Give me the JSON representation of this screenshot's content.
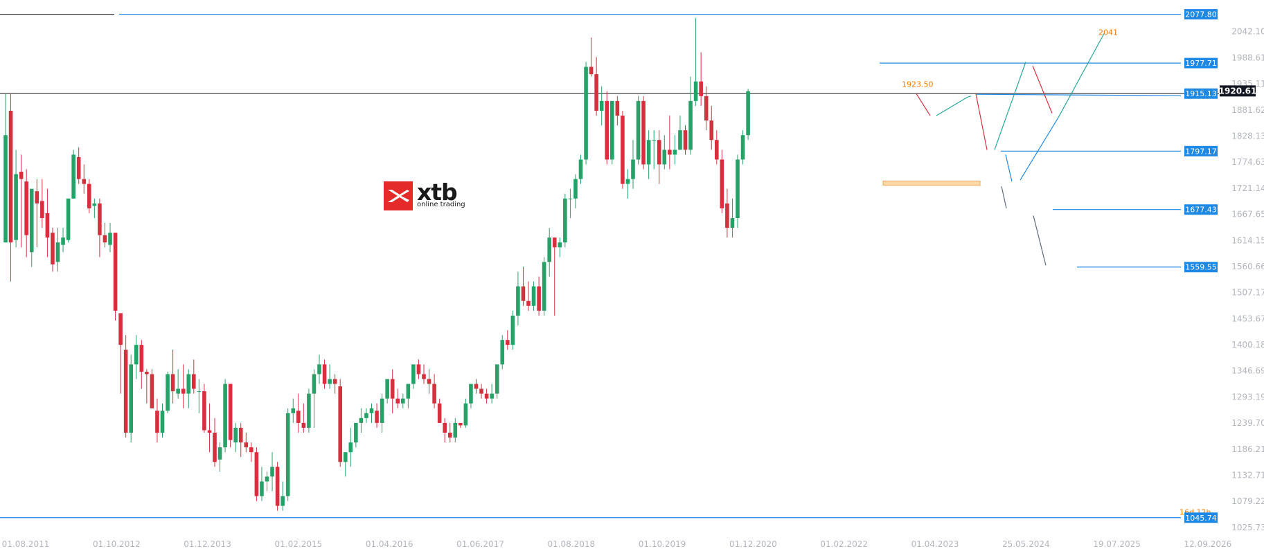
{
  "brand": {
    "name": "xtb",
    "tagline": "online trading"
  },
  "chart_data": {
    "type": "candlestick",
    "ylim": [
      1000,
      2090
    ],
    "y_ticks": [
      "2042.10",
      "1988.61",
      "1935.11",
      "1881.62",
      "1828.13",
      "1774.63",
      "1721.14",
      "1667.65",
      "1614.15",
      "1560.66",
      "1507.17",
      "1453.67",
      "1400.18",
      "1346.69",
      "1293.19",
      "1239.70",
      "1186.21",
      "1132.71",
      "1079.22",
      "1025.73"
    ],
    "x_ticks": [
      "01.08.2011",
      "01.10.2012",
      "01.12.2013",
      "01.02.2015",
      "01.04.2016",
      "01.06.2017",
      "01.08.2018",
      "01.10.2019",
      "01.12.2020",
      "01.02.2022",
      "01.04.2023",
      "25.05.2024",
      "19.07.2025",
      "12.09.2026"
    ],
    "candles": [
      {
        "o": 1610,
        "h": 1915,
        "l": 1610,
        "c": 1830
      },
      {
        "o": 1880,
        "h": 1915,
        "l": 1530,
        "c": 1610
      },
      {
        "o": 1615,
        "h": 1800,
        "l": 1600,
        "c": 1750
      },
      {
        "o": 1755,
        "h": 1790,
        "l": 1600,
        "c": 1740
      },
      {
        "o": 1735,
        "h": 1760,
        "l": 1580,
        "c": 1625
      },
      {
        "o": 1590,
        "h": 1715,
        "l": 1560,
        "c": 1720
      },
      {
        "o": 1715,
        "h": 1740,
        "l": 1600,
        "c": 1690
      },
      {
        "o": 1695,
        "h": 1740,
        "l": 1640,
        "c": 1660
      },
      {
        "o": 1670,
        "h": 1720,
        "l": 1580,
        "c": 1620
      },
      {
        "o": 1630,
        "h": 1640,
        "l": 1550,
        "c": 1565
      },
      {
        "o": 1570,
        "h": 1640,
        "l": 1550,
        "c": 1610
      },
      {
        "o": 1605,
        "h": 1640,
        "l": 1590,
        "c": 1620
      },
      {
        "o": 1615,
        "h": 1700,
        "l": 1610,
        "c": 1700
      },
      {
        "o": 1700,
        "h": 1800,
        "l": 1700,
        "c": 1790
      },
      {
        "o": 1785,
        "h": 1805,
        "l": 1730,
        "c": 1740
      },
      {
        "o": 1740,
        "h": 1770,
        "l": 1710,
        "c": 1730
      },
      {
        "o": 1730,
        "h": 1740,
        "l": 1670,
        "c": 1680
      },
      {
        "o": 1685,
        "h": 1700,
        "l": 1660,
        "c": 1690
      },
      {
        "o": 1690,
        "h": 1700,
        "l": 1580,
        "c": 1625
      },
      {
        "o": 1625,
        "h": 1650,
        "l": 1600,
        "c": 1610
      },
      {
        "o": 1605,
        "h": 1650,
        "l": 1590,
        "c": 1630
      },
      {
        "o": 1630,
        "h": 1630,
        "l": 1450,
        "c": 1470
      },
      {
        "o": 1465,
        "h": 1460,
        "l": 1300,
        "c": 1400
      },
      {
        "o": 1390,
        "h": 1420,
        "l": 1210,
        "c": 1220
      },
      {
        "o": 1220,
        "h": 1380,
        "l": 1200,
        "c": 1360
      },
      {
        "o": 1360,
        "h": 1420,
        "l": 1330,
        "c": 1400
      },
      {
        "o": 1400,
        "h": 1410,
        "l": 1310,
        "c": 1345
      },
      {
        "o": 1345,
        "h": 1350,
        "l": 1280,
        "c": 1340
      },
      {
        "o": 1340,
        "h": 1350,
        "l": 1270,
        "c": 1270
      },
      {
        "o": 1265,
        "h": 1290,
        "l": 1200,
        "c": 1220
      },
      {
        "o": 1220,
        "h": 1280,
        "l": 1210,
        "c": 1265
      },
      {
        "o": 1265,
        "h": 1345,
        "l": 1260,
        "c": 1340
      },
      {
        "o": 1340,
        "h": 1390,
        "l": 1280,
        "c": 1305
      },
      {
        "o": 1300,
        "h": 1350,
        "l": 1290,
        "c": 1310
      },
      {
        "o": 1310,
        "h": 1360,
        "l": 1270,
        "c": 1300
      },
      {
        "o": 1300,
        "h": 1350,
        "l": 1270,
        "c": 1340
      },
      {
        "o": 1340,
        "h": 1370,
        "l": 1300,
        "c": 1310
      },
      {
        "o": 1305,
        "h": 1330,
        "l": 1260,
        "c": 1305
      },
      {
        "o": 1305,
        "h": 1320,
        "l": 1220,
        "c": 1225
      },
      {
        "o": 1225,
        "h": 1280,
        "l": 1180,
        "c": 1220
      },
      {
        "o": 1220,
        "h": 1250,
        "l": 1150,
        "c": 1160
      },
      {
        "o": 1165,
        "h": 1200,
        "l": 1140,
        "c": 1190
      },
      {
        "o": 1190,
        "h": 1330,
        "l": 1180,
        "c": 1320
      },
      {
        "o": 1320,
        "h": 1320,
        "l": 1190,
        "c": 1205
      },
      {
        "o": 1200,
        "h": 1240,
        "l": 1180,
        "c": 1230
      },
      {
        "o": 1230,
        "h": 1240,
        "l": 1170,
        "c": 1200
      },
      {
        "o": 1200,
        "h": 1220,
        "l": 1180,
        "c": 1190
      },
      {
        "o": 1190,
        "h": 1200,
        "l": 1160,
        "c": 1180
      },
      {
        "o": 1180,
        "h": 1190,
        "l": 1080,
        "c": 1090
      },
      {
        "o": 1090,
        "h": 1150,
        "l": 1080,
        "c": 1120
      },
      {
        "o": 1120,
        "h": 1140,
        "l": 1100,
        "c": 1130
      },
      {
        "o": 1130,
        "h": 1180,
        "l": 1100,
        "c": 1150
      },
      {
        "o": 1150,
        "h": 1160,
        "l": 1060,
        "c": 1070
      },
      {
        "o": 1070,
        "h": 1120,
        "l": 1060,
        "c": 1090
      },
      {
        "o": 1090,
        "h": 1270,
        "l": 1080,
        "c": 1260
      },
      {
        "o": 1260,
        "h": 1290,
        "l": 1240,
        "c": 1270
      },
      {
        "o": 1265,
        "h": 1300,
        "l": 1220,
        "c": 1240
      },
      {
        "o": 1240,
        "h": 1280,
        "l": 1220,
        "c": 1230
      },
      {
        "o": 1230,
        "h": 1310,
        "l": 1220,
        "c": 1300
      },
      {
        "o": 1300,
        "h": 1350,
        "l": 1230,
        "c": 1340
      },
      {
        "o": 1340,
        "h": 1380,
        "l": 1320,
        "c": 1360
      },
      {
        "o": 1360,
        "h": 1370,
        "l": 1310,
        "c": 1320
      },
      {
        "o": 1320,
        "h": 1360,
        "l": 1310,
        "c": 1330
      },
      {
        "o": 1330,
        "h": 1340,
        "l": 1300,
        "c": 1320
      },
      {
        "o": 1315,
        "h": 1330,
        "l": 1150,
        "c": 1160
      },
      {
        "o": 1160,
        "h": 1180,
        "l": 1130,
        "c": 1180
      },
      {
        "o": 1180,
        "h": 1230,
        "l": 1150,
        "c": 1200
      },
      {
        "o": 1200,
        "h": 1240,
        "l": 1190,
        "c": 1240
      },
      {
        "o": 1240,
        "h": 1270,
        "l": 1220,
        "c": 1250
      },
      {
        "o": 1250,
        "h": 1270,
        "l": 1240,
        "c": 1260
      },
      {
        "o": 1260,
        "h": 1280,
        "l": 1240,
        "c": 1270
      },
      {
        "o": 1265,
        "h": 1280,
        "l": 1230,
        "c": 1240
      },
      {
        "o": 1240,
        "h": 1300,
        "l": 1220,
        "c": 1290
      },
      {
        "o": 1290,
        "h": 1330,
        "l": 1280,
        "c": 1330
      },
      {
        "o": 1330,
        "h": 1350,
        "l": 1260,
        "c": 1290
      },
      {
        "o": 1290,
        "h": 1310,
        "l": 1270,
        "c": 1280
      },
      {
        "o": 1280,
        "h": 1300,
        "l": 1270,
        "c": 1290
      },
      {
        "o": 1290,
        "h": 1320,
        "l": 1270,
        "c": 1320
      },
      {
        "o": 1320,
        "h": 1360,
        "l": 1310,
        "c": 1360
      },
      {
        "o": 1360,
        "h": 1370,
        "l": 1330,
        "c": 1340
      },
      {
        "o": 1340,
        "h": 1360,
        "l": 1320,
        "c": 1330
      },
      {
        "o": 1330,
        "h": 1350,
        "l": 1300,
        "c": 1320
      },
      {
        "o": 1320,
        "h": 1340,
        "l": 1270,
        "c": 1280
      },
      {
        "o": 1280,
        "h": 1290,
        "l": 1240,
        "c": 1240
      },
      {
        "o": 1240,
        "h": 1250,
        "l": 1200,
        "c": 1220
      },
      {
        "o": 1220,
        "h": 1240,
        "l": 1200,
        "c": 1210
      },
      {
        "o": 1210,
        "h": 1250,
        "l": 1200,
        "c": 1240
      },
      {
        "o": 1240,
        "h": 1240,
        "l": 1230,
        "c": 1235
      },
      {
        "o": 1235,
        "h": 1290,
        "l": 1230,
        "c": 1280
      },
      {
        "o": 1280,
        "h": 1320,
        "l": 1270,
        "c": 1320
      },
      {
        "o": 1320,
        "h": 1330,
        "l": 1300,
        "c": 1310
      },
      {
        "o": 1310,
        "h": 1320,
        "l": 1290,
        "c": 1300
      },
      {
        "o": 1300,
        "h": 1310,
        "l": 1280,
        "c": 1290
      },
      {
        "o": 1290,
        "h": 1320,
        "l": 1280,
        "c": 1300
      },
      {
        "o": 1300,
        "h": 1360,
        "l": 1290,
        "c": 1360
      },
      {
        "o": 1360,
        "h": 1420,
        "l": 1350,
        "c": 1410
      },
      {
        "o": 1410,
        "h": 1430,
        "l": 1390,
        "c": 1400
      },
      {
        "o": 1400,
        "h": 1470,
        "l": 1390,
        "c": 1460
      },
      {
        "o": 1460,
        "h": 1550,
        "l": 1440,
        "c": 1520
      },
      {
        "o": 1520,
        "h": 1560,
        "l": 1480,
        "c": 1490
      },
      {
        "o": 1490,
        "h": 1530,
        "l": 1470,
        "c": 1480
      },
      {
        "o": 1480,
        "h": 1530,
        "l": 1470,
        "c": 1520
      },
      {
        "o": 1520,
        "h": 1540,
        "l": 1460,
        "c": 1470
      },
      {
        "o": 1470,
        "h": 1580,
        "l": 1460,
        "c": 1570
      },
      {
        "o": 1570,
        "h": 1640,
        "l": 1540,
        "c": 1620
      },
      {
        "o": 1620,
        "h": 1620,
        "l": 1460,
        "c": 1600
      },
      {
        "o": 1600,
        "h": 1620,
        "l": 1580,
        "c": 1610
      },
      {
        "o": 1610,
        "h": 1710,
        "l": 1600,
        "c": 1700
      },
      {
        "o": 1700,
        "h": 1720,
        "l": 1660,
        "c": 1700
      },
      {
        "o": 1700,
        "h": 1750,
        "l": 1680,
        "c": 1740
      },
      {
        "o": 1740,
        "h": 1790,
        "l": 1730,
        "c": 1780
      },
      {
        "o": 1780,
        "h": 1980,
        "l": 1770,
        "c": 1970
      },
      {
        "o": 1970,
        "h": 2030,
        "l": 1950,
        "c": 1955
      },
      {
        "o": 1955,
        "h": 1990,
        "l": 1870,
        "c": 1880
      },
      {
        "o": 1880,
        "h": 1930,
        "l": 1850,
        "c": 1900
      },
      {
        "o": 1900,
        "h": 1920,
        "l": 1770,
        "c": 1780
      },
      {
        "o": 1780,
        "h": 1900,
        "l": 1770,
        "c": 1900
      },
      {
        "o": 1900,
        "h": 1910,
        "l": 1850,
        "c": 1870
      },
      {
        "o": 1870,
        "h": 1880,
        "l": 1720,
        "c": 1730
      },
      {
        "o": 1730,
        "h": 1760,
        "l": 1700,
        "c": 1740
      },
      {
        "o": 1740,
        "h": 1820,
        "l": 1720,
        "c": 1780
      },
      {
        "o": 1780,
        "h": 1910,
        "l": 1770,
        "c": 1900
      },
      {
        "o": 1900,
        "h": 1910,
        "l": 1760,
        "c": 1770
      },
      {
        "o": 1770,
        "h": 1840,
        "l": 1740,
        "c": 1820
      },
      {
        "o": 1820,
        "h": 1840,
        "l": 1760,
        "c": 1820
      },
      {
        "o": 1820,
        "h": 1840,
        "l": 1730,
        "c": 1770
      },
      {
        "o": 1770,
        "h": 1830,
        "l": 1760,
        "c": 1800
      },
      {
        "o": 1800,
        "h": 1870,
        "l": 1760,
        "c": 1790
      },
      {
        "o": 1790,
        "h": 1830,
        "l": 1770,
        "c": 1800
      },
      {
        "o": 1800,
        "h": 1870,
        "l": 1800,
        "c": 1840
      },
      {
        "o": 1840,
        "h": 1850,
        "l": 1790,
        "c": 1800
      },
      {
        "o": 1800,
        "h": 1950,
        "l": 1790,
        "c": 1900
      },
      {
        "o": 1900,
        "h": 2070,
        "l": 1890,
        "c": 1940
      },
      {
        "o": 1940,
        "h": 2000,
        "l": 1890,
        "c": 1910
      },
      {
        "o": 1910,
        "h": 1930,
        "l": 1840,
        "c": 1860
      },
      {
        "o": 1860,
        "h": 1890,
        "l": 1800,
        "c": 1820
      },
      {
        "o": 1820,
        "h": 1840,
        "l": 1770,
        "c": 1780
      },
      {
        "o": 1780,
        "h": 1800,
        "l": 1670,
        "c": 1680
      },
      {
        "o": 1690,
        "h": 1720,
        "l": 1620,
        "c": 1640
      },
      {
        "o": 1640,
        "h": 1700,
        "l": 1620,
        "c": 1660
      },
      {
        "o": 1660,
        "h": 1790,
        "l": 1640,
        "c": 1780
      },
      {
        "o": 1780,
        "h": 1840,
        "l": 1770,
        "c": 1830
      },
      {
        "o": 1830,
        "h": 1925,
        "l": 1820,
        "c": 1920
      }
    ],
    "levels": [
      {
        "value": 2077.8,
        "label": "2077.80"
      },
      {
        "value": 1977.71,
        "label": "1977.71"
      },
      {
        "value": 1915.13,
        "label": "1915.13"
      },
      {
        "value": 1797.17,
        "label": "1797.17"
      },
      {
        "value": 1677.43,
        "label": "1677.43"
      },
      {
        "value": 1559.55,
        "label": "1559.55"
      },
      {
        "value": 1045.74,
        "label": "1045.74"
      }
    ],
    "current_price": {
      "value": 1920.61,
      "label": "1920.61"
    },
    "annotations": [
      {
        "text": "1923.50"
      },
      {
        "text": "2041"
      },
      {
        "text": "16d 12h"
      }
    ],
    "colors": {
      "up": "#26a269",
      "down": "#d6303f",
      "level": "#1e88e5",
      "tag_bg": "#1e88e5",
      "current_tag_bg": "#131722",
      "orange": "#f57c00",
      "zone": "#fbd9a8",
      "zone_border": "#f2a654",
      "path_red": "#d6303f",
      "path_green": "#26a69a",
      "path_blue": "#1e88e5",
      "path_gray": "#5d6d7e"
    }
  }
}
